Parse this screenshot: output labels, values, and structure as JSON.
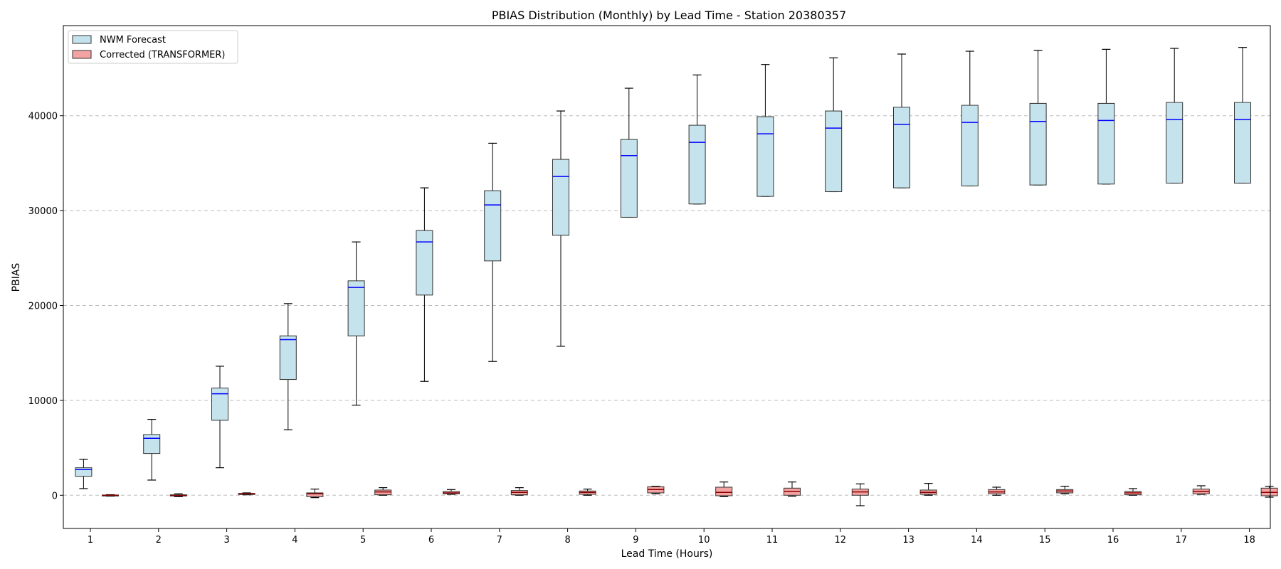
{
  "chart_data": {
    "type": "box",
    "title": "PBIAS Distribution (Monthly) by Lead Time - Station 20380357",
    "xlabel": "Lead Time (Hours)",
    "ylabel": "PBIAS",
    "categories": [
      "1",
      "2",
      "3",
      "4",
      "5",
      "6",
      "7",
      "8",
      "9",
      "10",
      "11",
      "12",
      "13",
      "14",
      "15",
      "16",
      "17",
      "18"
    ],
    "ylim": [
      -3500,
      49500
    ],
    "yticks": [
      0,
      10000,
      20000,
      30000,
      40000
    ],
    "ytick_labels": [
      "0",
      "10000",
      "20000",
      "30000",
      "40000"
    ],
    "grid": "y-dashed",
    "legend_position": "top-left",
    "series": [
      {
        "name": "NWM Forecast",
        "fill": "#c5e3ec",
        "median_color": "#0000ff",
        "boxes": [
          {
            "whislo": 700,
            "q1": 2000,
            "med": 2700,
            "q3": 2900,
            "whishi": 3800
          },
          {
            "whislo": 1600,
            "q1": 4400,
            "med": 6000,
            "q3": 6400,
            "whishi": 8000
          },
          {
            "whislo": 2900,
            "q1": 7900,
            "med": 10700,
            "q3": 11300,
            "whishi": 13600
          },
          {
            "whislo": 6900,
            "q1": 12200,
            "med": 16400,
            "q3": 16800,
            "whishi": 20200
          },
          {
            "whislo": 9500,
            "q1": 16800,
            "med": 21900,
            "q3": 22600,
            "whishi": 26700
          },
          {
            "whislo": 12000,
            "q1": 21100,
            "med": 26700,
            "q3": 27900,
            "whishi": 32400
          },
          {
            "whislo": 14100,
            "q1": 24700,
            "med": 30600,
            "q3": 32100,
            "whishi": 37100
          },
          {
            "whislo": 15700,
            "q1": 27400,
            "med": 33600,
            "q3": 35400,
            "whishi": 40500
          },
          {
            "whislo": 29300,
            "q1": 29300,
            "med": 35800,
            "q3": 37500,
            "whishi": 42900
          },
          {
            "whislo": 30700,
            "q1": 30700,
            "med": 37200,
            "q3": 39000,
            "whishi": 44300
          },
          {
            "whislo": 31500,
            "q1": 31500,
            "med": 38100,
            "q3": 39900,
            "whishi": 45400
          },
          {
            "whislo": 32000,
            "q1": 32000,
            "med": 38700,
            "q3": 40500,
            "whishi": 46100
          },
          {
            "whislo": 32400,
            "q1": 32400,
            "med": 39100,
            "q3": 40900,
            "whishi": 46500
          },
          {
            "whislo": 32600,
            "q1": 32600,
            "med": 39300,
            "q3": 41100,
            "whishi": 46800
          },
          {
            "whislo": 32700,
            "q1": 32700,
            "med": 39400,
            "q3": 41300,
            "whishi": 46900
          },
          {
            "whislo": 32800,
            "q1": 32800,
            "med": 39500,
            "q3": 41300,
            "whishi": 47000
          },
          {
            "whislo": 32900,
            "q1": 32900,
            "med": 39600,
            "q3": 41400,
            "whishi": 47100
          },
          {
            "whislo": 32900,
            "q1": 32900,
            "med": 39600,
            "q3": 41400,
            "whishi": 47200
          }
        ]
      },
      {
        "name": "Corrected (TRANSFORMER)",
        "fill": "#f4a3a3",
        "median_color": "#8b0000",
        "boxes": [
          {
            "whislo": -100,
            "q1": -50,
            "med": 0,
            "q3": 30,
            "whishi": 60
          },
          {
            "whislo": -150,
            "q1": -80,
            "med": -20,
            "q3": 50,
            "whishi": 150
          },
          {
            "whislo": 50,
            "q1": 80,
            "med": 150,
            "q3": 200,
            "whishi": 250
          },
          {
            "whislo": -250,
            "q1": -150,
            "med": 150,
            "q3": 250,
            "whishi": 650
          },
          {
            "whislo": 0,
            "q1": 50,
            "med": 350,
            "q3": 550,
            "whishi": 800
          },
          {
            "whislo": 100,
            "q1": 150,
            "med": 250,
            "q3": 400,
            "whishi": 600
          },
          {
            "whislo": 0,
            "q1": 50,
            "med": 300,
            "q3": 500,
            "whishi": 800
          },
          {
            "whislo": 0,
            "q1": 100,
            "med": 300,
            "q3": 450,
            "whishi": 650
          },
          {
            "whislo": 150,
            "q1": 250,
            "med": 600,
            "q3": 900,
            "whishi": 950
          },
          {
            "whislo": -150,
            "q1": -50,
            "med": 300,
            "q3": 850,
            "whishi": 1400
          },
          {
            "whislo": -100,
            "q1": 0,
            "med": 400,
            "q3": 750,
            "whishi": 1400
          },
          {
            "whislo": -1100,
            "q1": 0,
            "med": 350,
            "q3": 650,
            "whishi": 1200
          },
          {
            "whislo": 0,
            "q1": 100,
            "med": 300,
            "q3": 550,
            "whishi": 1250
          },
          {
            "whislo": 0,
            "q1": 150,
            "med": 350,
            "q3": 600,
            "whishi": 850
          },
          {
            "whislo": 150,
            "q1": 250,
            "med": 450,
            "q3": 600,
            "whishi": 950
          },
          {
            "whislo": 0,
            "q1": 50,
            "med": 250,
            "q3": 400,
            "whishi": 700
          },
          {
            "whislo": 100,
            "q1": 150,
            "med": 400,
            "q3": 650,
            "whishi": 1000
          },
          {
            "whislo": -200,
            "q1": -50,
            "med": 300,
            "q3": 750,
            "whishi": 950
          }
        ]
      }
    ]
  }
}
